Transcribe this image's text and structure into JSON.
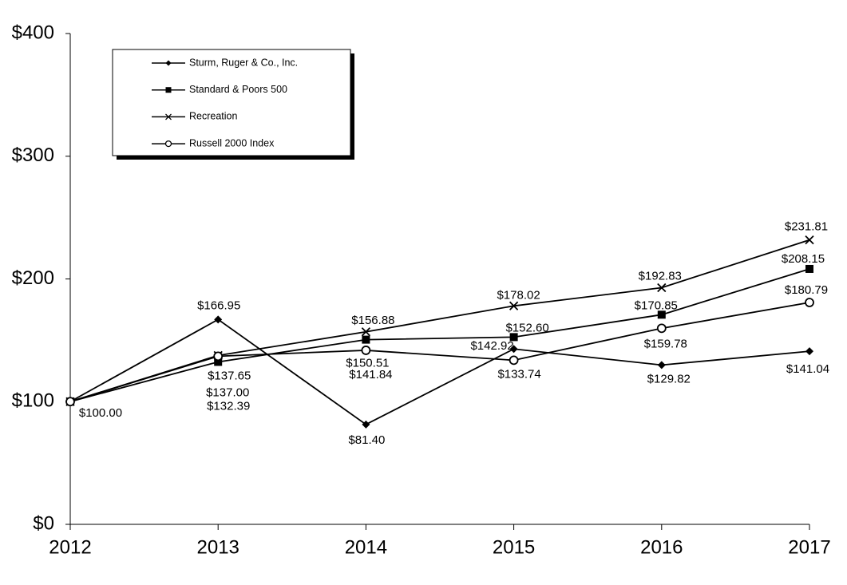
{
  "chart_data": {
    "type": "line",
    "categories": [
      "2012",
      "2013",
      "2014",
      "2015",
      "2016",
      "2017"
    ],
    "series": [
      {
        "name": "Sturm, Ruger & Co., Inc.",
        "color": "#000000",
        "marker": "diamond",
        "values": [
          100.0,
          166.95,
          81.4,
          142.92,
          129.82,
          141.04
        ],
        "value_labels": [
          "$100.00",
          "$166.95",
          "$81.40",
          "$142.92",
          "$129.82",
          "$141.04"
        ]
      },
      {
        "name": "Standard & Poors 500",
        "color": "#000000",
        "marker": "square",
        "values": [
          100.0,
          132.39,
          150.51,
          152.6,
          170.85,
          208.15
        ],
        "value_labels": [
          null,
          "$132.39",
          "$150.51",
          "$152.60",
          "$170.85",
          "$208.15"
        ]
      },
      {
        "name": "Recreation",
        "color": "#000000",
        "marker": "x",
        "values": [
          100.0,
          137.65,
          156.88,
          178.02,
          192.83,
          231.81
        ],
        "value_labels": [
          null,
          "$137.65",
          "$156.88",
          "$178.02",
          "$192.83",
          "$231.81"
        ]
      },
      {
        "name": "Russell 2000 Index",
        "color": "#000000",
        "marker": "circle",
        "values": [
          100.0,
          137.0,
          141.84,
          133.74,
          159.78,
          180.79
        ],
        "value_labels": [
          null,
          "$137.00",
          "$141.84",
          "$133.74",
          "$159.78",
          "$180.79"
        ]
      }
    ],
    "ylim": [
      0,
      400
    ],
    "yticks": [
      {
        "value": 0,
        "label": "$0"
      },
      {
        "value": 100,
        "label": "$100"
      },
      {
        "value": 200,
        "label": "$200"
      },
      {
        "value": 300,
        "label": "$300"
      },
      {
        "value": 400,
        "label": "$400"
      }
    ],
    "grid": false,
    "legend": "upper left"
  }
}
